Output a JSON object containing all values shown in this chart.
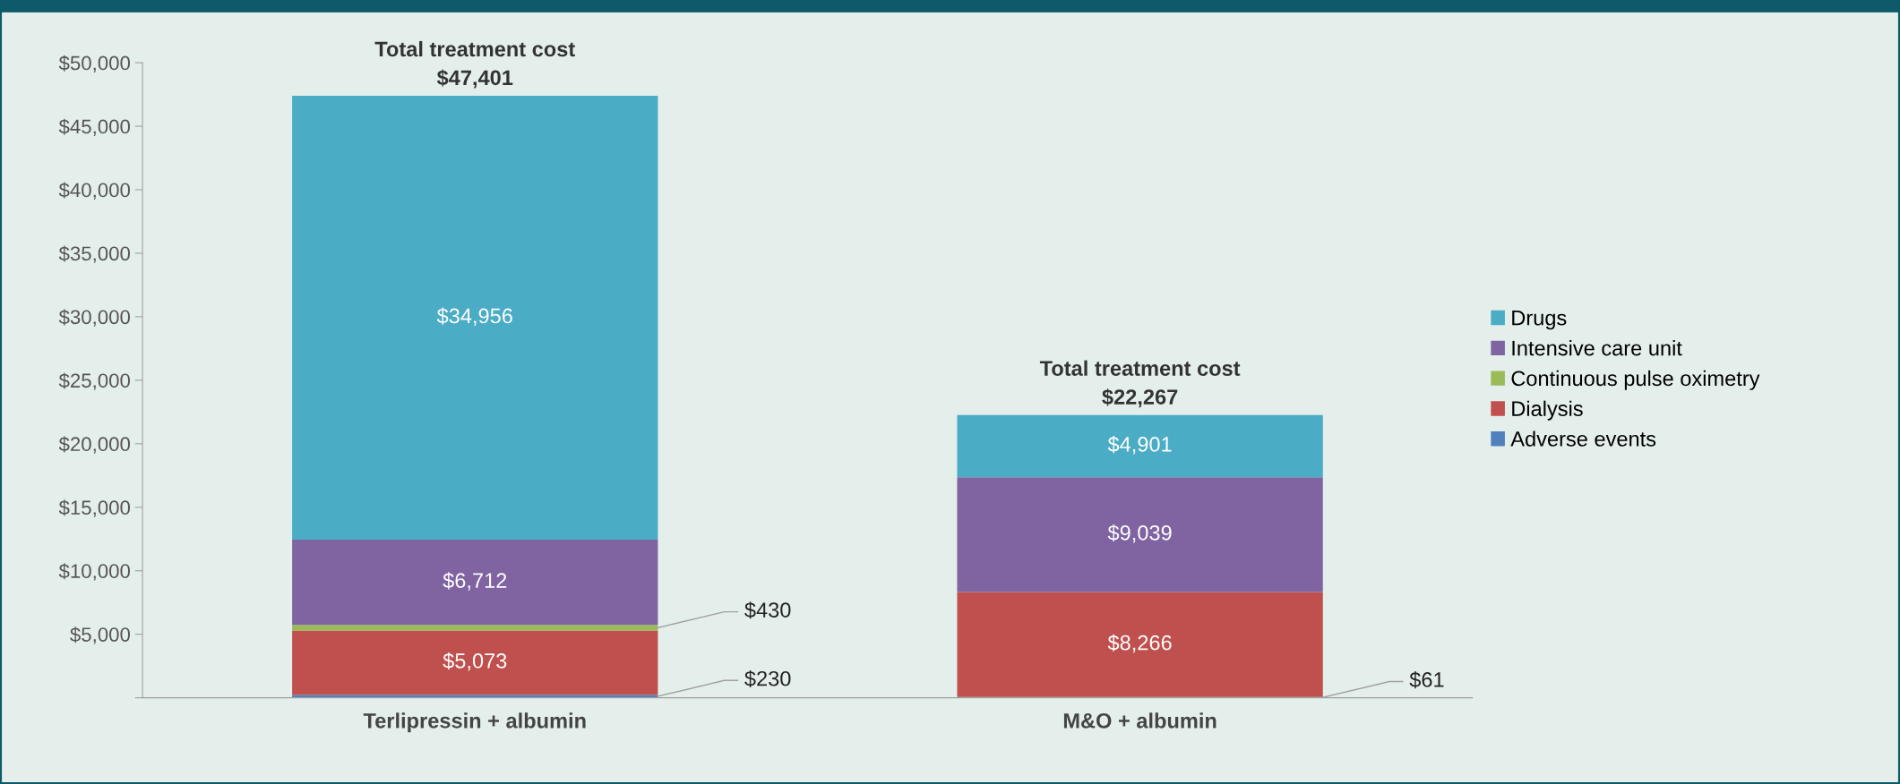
{
  "chart_data": {
    "type": "bar",
    "stacked": true,
    "categories": [
      "Terlipressin + albumin",
      "M&O + albumin"
    ],
    "series": [
      {
        "name": "Adverse events",
        "color": "#4f81bd",
        "values": [
          230,
          61
        ],
        "value_labels": [
          "$230",
          "$61"
        ]
      },
      {
        "name": "Dialysis",
        "color": "#c0504d",
        "values": [
          5073,
          8266
        ],
        "value_labels": [
          "$5,073",
          "$8,266"
        ]
      },
      {
        "name": "Continuous pulse oximetry",
        "color": "#9bbb59",
        "values": [
          430,
          null
        ],
        "value_labels": [
          "$430",
          null
        ]
      },
      {
        "name": "Intensive care unit",
        "color": "#8064a2",
        "values": [
          6712,
          9039
        ],
        "value_labels": [
          "$6,712",
          "$9,039"
        ]
      },
      {
        "name": "Drugs",
        "color": "#4bacc6",
        "values": [
          34956,
          4901
        ],
        "value_labels": [
          "$34,956",
          "$4,901"
        ]
      }
    ],
    "totals": [
      "$47,401",
      "$22,267"
    ],
    "annotations": [
      {
        "text": "Total treatment cost",
        "x": "Terlipressin + albumin",
        "y": 47401
      },
      {
        "text": "Total treatment cost",
        "x": "M&O + albumin",
        "y": 22267
      }
    ],
    "ylim": [
      0,
      50000
    ],
    "yticks": [
      {
        "value": 0,
        "label": null
      },
      {
        "value": 5000,
        "label": "$5,000"
      },
      {
        "value": 10000,
        "label": "$10,000"
      },
      {
        "value": 15000,
        "label": "$15,000"
      },
      {
        "value": 20000,
        "label": "$20,000"
      },
      {
        "value": 25000,
        "label": "$25,000"
      },
      {
        "value": 30000,
        "label": "$30,000"
      },
      {
        "value": 35000,
        "label": "$35,000"
      },
      {
        "value": 40000,
        "label": "$40,000"
      },
      {
        "value": 45000,
        "label": "$45,000"
      },
      {
        "value": 50000,
        "label": "$50,000"
      }
    ],
    "grid": false,
    "legend": "right"
  }
}
